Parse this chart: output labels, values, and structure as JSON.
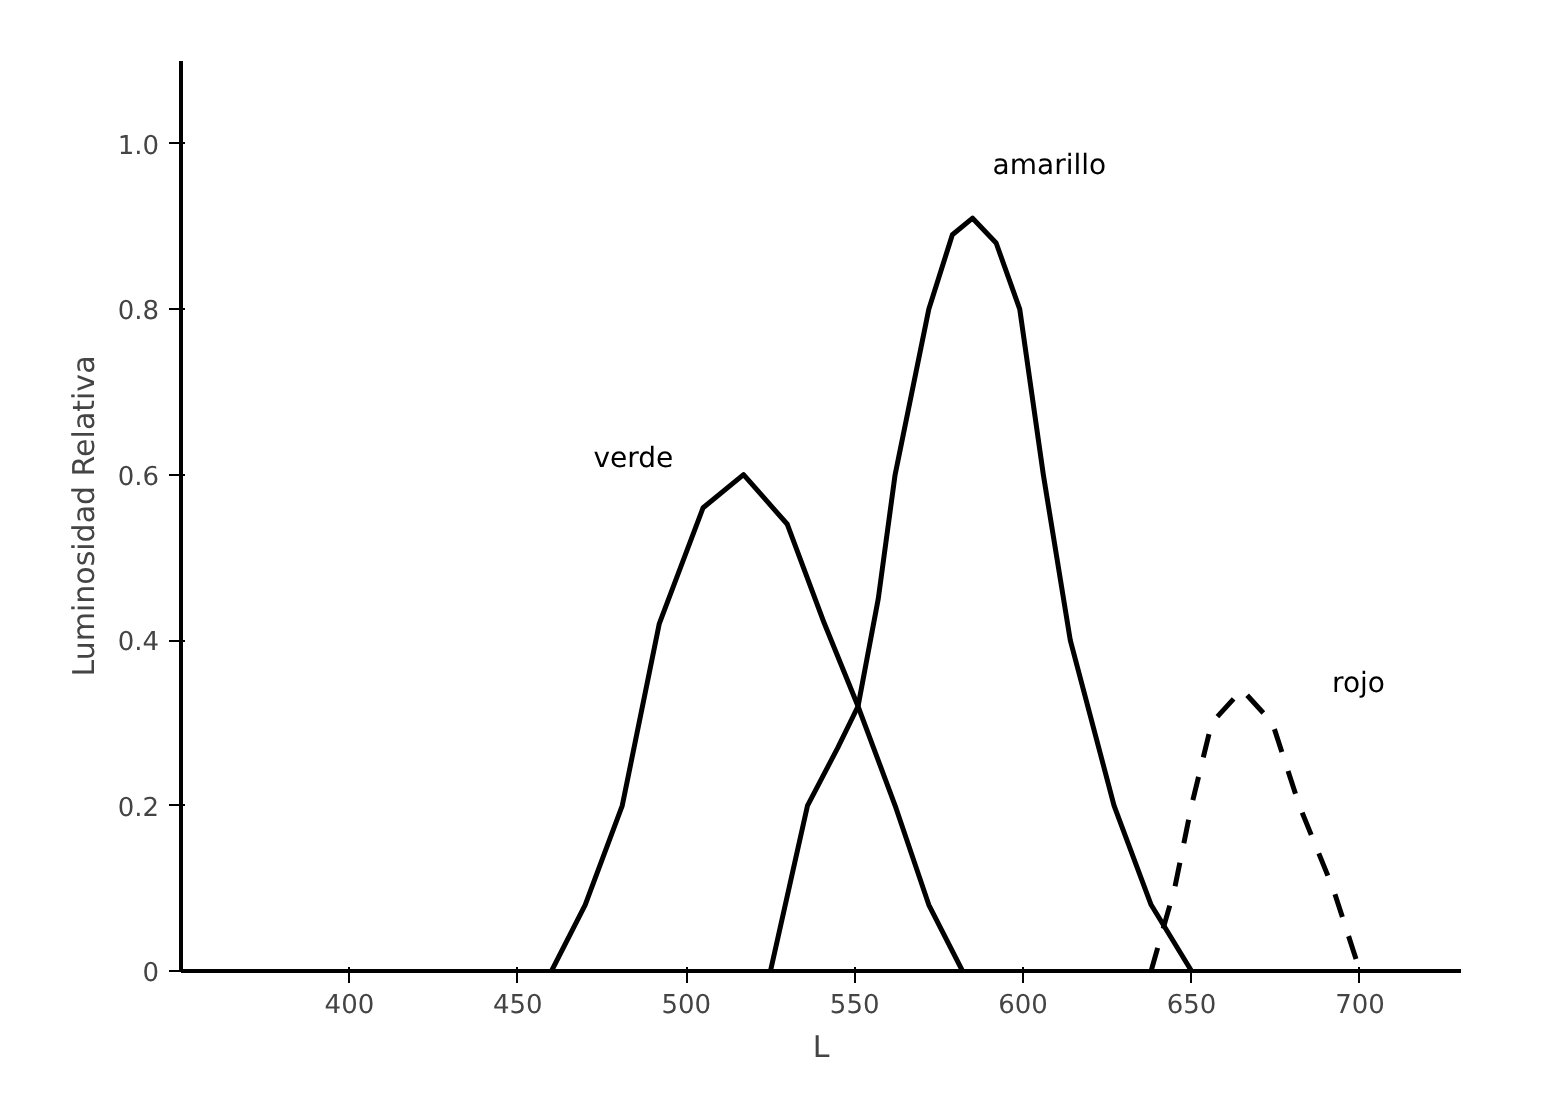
{
  "chart_data": {
    "type": "line",
    "xlabel": "L",
    "ylabel": "Luminosidad Relativa",
    "xlim": [
      350,
      730
    ],
    "ylim": [
      0,
      1.1
    ],
    "xticks": [
      400,
      450,
      500,
      550,
      600,
      650,
      700
    ],
    "yticks": [
      0,
      0.2,
      0.4,
      0.6,
      0.8,
      {
        "value": 1.0,
        "label": "1.0"
      }
    ],
    "grid": false,
    "legend": false,
    "series": [
      {
        "name": "verde",
        "color": "#000000",
        "line_style": "solid",
        "x": [
          460,
          470,
          481,
          492,
          505,
          517,
          530,
          541,
          551,
          562,
          572,
          582
        ],
        "values": [
          0,
          0.08,
          0.2,
          0.42,
          0.56,
          0.6,
          0.54,
          0.42,
          0.32,
          0.2,
          0.08,
          0
        ]
      },
      {
        "name": "amarillo",
        "color": "#000000",
        "line_style": "solid",
        "x": [
          525,
          536,
          545,
          551,
          557,
          562,
          572,
          579,
          585,
          592,
          599,
          606,
          614,
          627,
          638,
          650
        ],
        "values": [
          0,
          0.2,
          0.27,
          0.32,
          0.45,
          0.6,
          0.8,
          0.89,
          0.91,
          0.88,
          0.8,
          0.6,
          0.4,
          0.2,
          0.08,
          0
        ]
      },
      {
        "name": "rojo",
        "color": "#000000",
        "line_style": "dashed",
        "x": [
          638,
          645,
          650,
          656,
          665,
          674,
          682,
          692,
          700
        ],
        "values": [
          0,
          0.1,
          0.2,
          0.3,
          0.34,
          0.3,
          0.2,
          0.1,
          0
        ]
      }
    ]
  }
}
